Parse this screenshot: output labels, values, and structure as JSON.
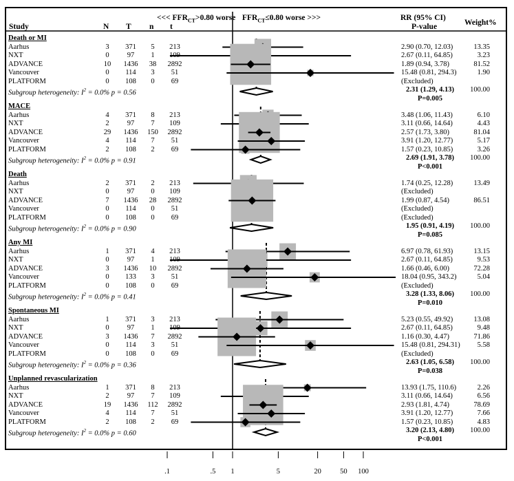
{
  "chart_data": {
    "type": "forest",
    "scale": "log",
    "axis": {
      "ticks": [
        0.1,
        0.5,
        1,
        5,
        20,
        50,
        100
      ],
      "tick_labels": [
        ".1",
        ".5",
        "1",
        "5",
        "20",
        "50",
        "100"
      ]
    },
    "headers": {
      "study": "Study",
      "N": "N",
      "T": "T",
      "n": "n",
      "t": "t",
      "worse_left_prefix": "<<< FFR",
      "worse_left_sub": "CT",
      "worse_left_suffix": ">0.80 worse",
      "worse_right_prefix": "FFR",
      "worse_right_sub": "CT",
      "worse_right_suffix": "≤0.80 worse >>>",
      "rr": "RR (95% CI)",
      "pvalue": "P-value",
      "weight": "Weight%"
    },
    "groups": [
      {
        "title": "Death or MI",
        "studies": [
          {
            "name": "Aarhus",
            "N": "3",
            "T": "371",
            "n": "5",
            "t": "213",
            "rr": 2.9,
            "lo": 0.7,
            "hi": 12.03,
            "ci_text": "2.90 (0.70, 12.03)",
            "weight_text": "13.35"
          },
          {
            "name": "NXT",
            "N": "0",
            "T": "97",
            "n": "1",
            "t": "109",
            "rr": 2.67,
            "lo": 0.11,
            "hi": 64.85,
            "ci_text": "2.67 (0.11, 64.85)",
            "weight_text": "3.23"
          },
          {
            "name": "ADVANCE",
            "N": "10",
            "T": "1436",
            "n": "38",
            "t": "2892",
            "rr": 1.89,
            "lo": 0.94,
            "hi": 3.78,
            "ci_text": "1.89 (0.94, 3.78)",
            "weight_text": "81.52"
          },
          {
            "name": "Vancouver",
            "N": "0",
            "T": "114",
            "n": "3",
            "t": "51",
            "rr": 15.48,
            "lo": 0.81,
            "hi": 294.3,
            "ci_text": "15.48 (0.81, 294.3)",
            "weight_text": "1.90"
          },
          {
            "name": "PLATFORM",
            "N": "0",
            "T": "108",
            "n": "0",
            "t": "69",
            "rr": null,
            "ci_text": "(Excluded)",
            "weight_text": ""
          }
        ],
        "heterogeneity_prefix": "Subgroup heterogeneity: I",
        "heterogeneity_suffix": " = 0.0% p = 0.56",
        "summary": {
          "rr": 2.31,
          "lo": 1.29,
          "hi": 4.13,
          "ci_text": "2.31 (1.29, 4.13)",
          "weight_text": "100.00",
          "p_text": "P=0.005"
        }
      },
      {
        "title": "MACE",
        "studies": [
          {
            "name": "Aarhus",
            "N": "4",
            "T": "371",
            "n": "8",
            "t": "213",
            "rr": 3.48,
            "lo": 1.06,
            "hi": 11.43,
            "ci_text": "3.48 (1.06, 11.43)",
            "weight_text": "6.10"
          },
          {
            "name": "NXT",
            "N": "2",
            "T": "97",
            "n": "7",
            "t": "109",
            "rr": 3.11,
            "lo": 0.66,
            "hi": 14.64,
            "ci_text": "3.11 (0.66, 14.64)",
            "weight_text": "4.43"
          },
          {
            "name": "ADVANCE",
            "N": "29",
            "T": "1436",
            "n": "150",
            "t": "2892",
            "rr": 2.57,
            "lo": 1.73,
            "hi": 3.8,
            "ci_text": "2.57 (1.73, 3.80)",
            "weight_text": "81.04"
          },
          {
            "name": "Vancouver",
            "N": "4",
            "T": "114",
            "n": "7",
            "t": "51",
            "rr": 3.91,
            "lo": 1.2,
            "hi": 12.77,
            "ci_text": "3.91 (1.20, 12.77)",
            "weight_text": "5.17"
          },
          {
            "name": "PLATFORM",
            "N": "2",
            "T": "108",
            "n": "2",
            "t": "69",
            "rr": 1.57,
            "lo": 0.23,
            "hi": 10.85,
            "ci_text": "1.57 (0.23, 10.85)",
            "weight_text": "3.26"
          }
        ],
        "heterogeneity_prefix": "Subgroup heterogeneity: I",
        "heterogeneity_suffix": " = 0.0% p = 0.91",
        "summary": {
          "rr": 2.69,
          "lo": 1.91,
          "hi": 3.78,
          "ci_text": "2.69 (1.91, 3.78)",
          "weight_text": "100.00",
          "p_text": "P<0.001"
        }
      },
      {
        "title": "Death",
        "studies": [
          {
            "name": "Aarhus",
            "N": "2",
            "T": "371",
            "n": "2",
            "t": "213",
            "rr": 1.74,
            "lo": 0.25,
            "hi": 12.28,
            "ci_text": "1.74 (0.25, 12.28)",
            "weight_text": "13.49"
          },
          {
            "name": "NXT",
            "N": "0",
            "T": "97",
            "n": "0",
            "t": "109",
            "rr": null,
            "ci_text": "(Excluded)",
            "weight_text": ""
          },
          {
            "name": "ADVANCE",
            "N": "7",
            "T": "1436",
            "n": "28",
            "t": "2892",
            "rr": 1.99,
            "lo": 0.87,
            "hi": 4.54,
            "ci_text": "1.99 (0.87, 4.54)",
            "weight_text": "86.51"
          },
          {
            "name": "Vancouver",
            "N": "0",
            "T": "114",
            "n": "0",
            "t": "51",
            "rr": null,
            "ci_text": "(Excluded)",
            "weight_text": ""
          },
          {
            "name": "PLATFORM",
            "N": "0",
            "T": "108",
            "n": "0",
            "t": "69",
            "rr": null,
            "ci_text": "(Excluded)",
            "weight_text": ""
          }
        ],
        "heterogeneity_prefix": "Subgroup heterogeneity: I",
        "heterogeneity_suffix": " = 0.0% p = 0.90",
        "summary": {
          "rr": 1.95,
          "lo": 0.91,
          "hi": 4.19,
          "ci_text": "1.95 (0.91, 4.19)",
          "weight_text": "100.00",
          "p_text": "P=0.085"
        }
      },
      {
        "title": "Any MI",
        "studies": [
          {
            "name": "Aarhus",
            "N": "1",
            "T": "371",
            "n": "4",
            "t": "213",
            "rr": 6.97,
            "lo": 0.78,
            "hi": 61.93,
            "ci_text": "6.97 (0.78, 61.93)",
            "weight_text": "13.15"
          },
          {
            "name": "NXT",
            "N": "0",
            "T": "97",
            "n": "1",
            "t": "109",
            "rr": 2.67,
            "lo": 0.11,
            "hi": 64.85,
            "ci_text": "2.67 (0.11, 64.85)",
            "weight_text": "9.53"
          },
          {
            "name": "ADVANCE",
            "N": "3",
            "T": "1436",
            "n": "10",
            "t": "2892",
            "rr": 1.66,
            "lo": 0.46,
            "hi": 6.0,
            "ci_text": "1.66 (0.46, 6.00)",
            "weight_text": "72.28"
          },
          {
            "name": "Vancouver",
            "N": "0",
            "T": "133",
            "n": "3",
            "t": "51",
            "rr": 18.04,
            "lo": 0.95,
            "hi": 343.2,
            "ci_text": "18.04 (0.95, 343.2)",
            "weight_text": "5.04"
          },
          {
            "name": "PLATFORM",
            "N": "0",
            "T": "108",
            "n": "0",
            "t": "69",
            "rr": null,
            "ci_text": "(Excluded)",
            "weight_text": ""
          }
        ],
        "heterogeneity_prefix": "Subgroup heterogeneity: I",
        "heterogeneity_suffix": " = 0.0% p = 0.41",
        "summary": {
          "rr": 3.28,
          "lo": 1.33,
          "hi": 8.06,
          "ci_text": "3.28 (1.33, 8.06)",
          "weight_text": "100.00",
          "p_text": "P=0.010"
        }
      },
      {
        "title": "Spontaneous MI",
        "studies": [
          {
            "name": "Aarhus",
            "N": "1",
            "T": "371",
            "n": "3",
            "t": "213",
            "rr": 5.23,
            "lo": 0.55,
            "hi": 49.92,
            "ci_text": "5.23 (0.55, 49.92)",
            "weight_text": "13.08"
          },
          {
            "name": "NXT",
            "N": "0",
            "T": "97",
            "n": "1",
            "t": "109",
            "rr": 2.67,
            "lo": 0.11,
            "hi": 64.85,
            "ci_text": "2.67 (0.11, 64.85)",
            "weight_text": "9.48"
          },
          {
            "name": "ADVANCE",
            "N": "3",
            "T": "1436",
            "n": "7",
            "t": "2892",
            "rr": 1.16,
            "lo": 0.3,
            "hi": 4.47,
            "ci_text": "1.16 (0.30, 4.47)",
            "weight_text": "71.86"
          },
          {
            "name": "Vancouver",
            "N": "0",
            "T": "114",
            "n": "3",
            "t": "51",
            "rr": 15.48,
            "lo": 0.81,
            "hi": 294.31,
            "ci_text": "15.48 (0.81, 294.31)",
            "weight_text": "5.58"
          },
          {
            "name": "PLATFORM",
            "N": "0",
            "T": "108",
            "n": "0",
            "t": "69",
            "rr": null,
            "ci_text": "(Excluded)",
            "weight_text": ""
          }
        ],
        "heterogeneity_prefix": "Subgroup heterogeneity: I",
        "heterogeneity_suffix": " = 0.0% p = 0.36",
        "summary": {
          "rr": 2.63,
          "lo": 1.05,
          "hi": 6.58,
          "ci_text": "2.63 (1.05, 6.58)",
          "weight_text": "100.00",
          "p_text": "P=0.038"
        }
      },
      {
        "title": "Unplanned revascularization",
        "studies": [
          {
            "name": "Aarhus",
            "N": "1",
            "T": "371",
            "n": "8",
            "t": "213",
            "rr": 13.93,
            "lo": 1.75,
            "hi": 110.6,
            "ci_text": "13.93 (1.75, 110.6)",
            "weight_text": "2.26"
          },
          {
            "name": "NXT",
            "N": "2",
            "T": "97",
            "n": "7",
            "t": "109",
            "rr": 3.11,
            "lo": 0.66,
            "hi": 14.64,
            "ci_text": "3.11 (0.66, 14.64)",
            "weight_text": "6.56"
          },
          {
            "name": "ADVANCE",
            "N": "19",
            "T": "1436",
            "n": "112",
            "t": "2892",
            "rr": 2.93,
            "lo": 1.81,
            "hi": 4.74,
            "ci_text": "2.93 (1.81, 4.74)",
            "weight_text": "78.69"
          },
          {
            "name": "Vancouver",
            "N": "4",
            "T": "114",
            "n": "7",
            "t": "51",
            "rr": 3.91,
            "lo": 1.2,
            "hi": 12.77,
            "ci_text": "3.91 (1.20, 12.77)",
            "weight_text": "7.66"
          },
          {
            "name": "PLATFORM",
            "N": "2",
            "T": "108",
            "n": "2",
            "t": "69",
            "rr": 1.57,
            "lo": 0.23,
            "hi": 10.85,
            "ci_text": "1.57 (0.23, 10.85)",
            "weight_text": "4.83"
          }
        ],
        "heterogeneity_prefix": "Subgroup heterogeneity: I",
        "heterogeneity_suffix": " = 0.0% p = 0.60",
        "summary": {
          "rr": 3.2,
          "lo": 2.13,
          "hi": 4.8,
          "ci_text": "3.20 (2.13, 4.80)",
          "weight_text": "100.00",
          "p_text": "P<0.001"
        }
      }
    ]
  }
}
